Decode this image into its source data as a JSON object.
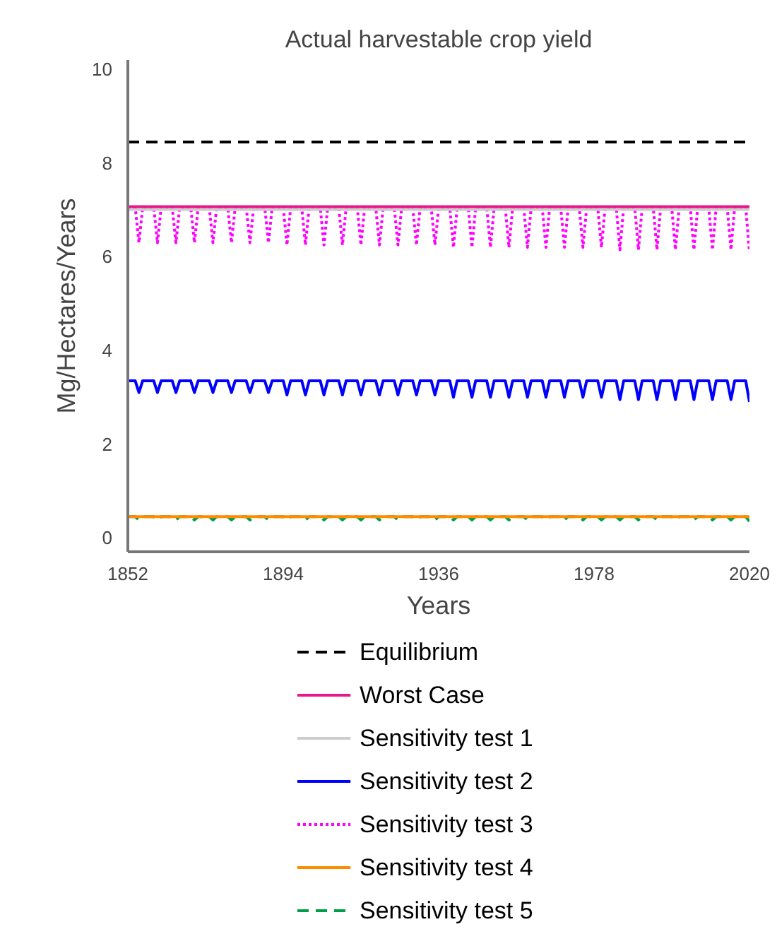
{
  "chart_data": {
    "type": "line",
    "title": "Actual harvestable crop yield",
    "xlabel": "Years",
    "ylabel": "Mg/Hectares/Years",
    "x": [
      1852,
      1854,
      1855,
      1856,
      1859,
      1860,
      1861,
      1864,
      1865,
      1866,
      1869,
      1870,
      1871,
      1874,
      1875,
      1876,
      1879,
      1880,
      1881,
      1884,
      1885,
      1886,
      1889,
      1890,
      1891,
      1894,
      1895,
      1896,
      1899,
      1900,
      1901,
      1904,
      1905,
      1906,
      1909,
      1910,
      1911,
      1914,
      1915,
      1916,
      1919,
      1920,
      1921,
      1924,
      1925,
      1926,
      1929,
      1930,
      1931,
      1934,
      1935,
      1936,
      1939,
      1940,
      1941,
      1944,
      1945,
      1946,
      1949,
      1950,
      1951,
      1954,
      1955,
      1956,
      1959,
      1960,
      1961,
      1964,
      1965,
      1966,
      1969,
      1970,
      1971,
      1974,
      1975,
      1976,
      1979,
      1980,
      1981,
      1984,
      1985,
      1986,
      1989,
      1990,
      1991,
      1994,
      1995,
      1996,
      1999,
      2000,
      2001,
      2004,
      2005,
      2006,
      2009,
      2010,
      2011,
      2014,
      2015,
      2016,
      2019,
      2020
    ],
    "series": [
      {
        "name": "Equilibrium",
        "color": "#000000",
        "line_style": "dashed",
        "values": [
          8.45,
          8.45,
          8.45,
          8.45,
          8.45,
          8.45,
          8.45,
          8.45,
          8.45,
          8.45,
          8.45,
          8.45,
          8.45,
          8.45,
          8.45,
          8.45,
          8.45,
          8.45,
          8.45,
          8.45,
          8.45,
          8.45,
          8.45,
          8.45,
          8.45,
          8.45,
          8.45,
          8.45,
          8.45,
          8.45,
          8.45,
          8.45,
          8.45,
          8.45,
          8.45,
          8.45,
          8.45,
          8.45,
          8.45,
          8.45,
          8.45,
          8.45,
          8.45,
          8.45,
          8.45,
          8.45,
          8.45,
          8.45,
          8.45,
          8.45,
          8.45,
          8.45,
          8.45,
          8.45,
          8.45,
          8.45,
          8.45,
          8.45,
          8.45,
          8.45,
          8.45,
          8.45,
          8.45,
          8.45,
          8.45,
          8.45,
          8.45,
          8.45,
          8.45,
          8.45,
          8.45,
          8.45,
          8.45,
          8.45,
          8.45,
          8.45,
          8.45,
          8.45,
          8.45,
          8.45,
          8.45,
          8.45,
          8.45,
          8.45,
          8.45,
          8.45,
          8.45,
          8.45,
          8.45,
          8.45,
          8.45,
          8.45,
          8.45,
          8.45,
          8.45,
          8.45,
          8.45,
          8.45,
          8.45,
          8.45,
          8.45,
          8.45
        ]
      },
      {
        "name": "Worst Case",
        "color": "#e8178a",
        "values": [
          7.07,
          7.07,
          7.07,
          7.07,
          7.07,
          7.07,
          7.07,
          7.07,
          7.07,
          7.07,
          7.07,
          7.07,
          7.07,
          7.07,
          7.07,
          7.07,
          7.07,
          7.07,
          7.07,
          7.07,
          7.07,
          7.07,
          7.07,
          7.07,
          7.07,
          7.07,
          7.07,
          7.07,
          7.07,
          7.07,
          7.07,
          7.07,
          7.07,
          7.07,
          7.07,
          7.07,
          7.07,
          7.07,
          7.07,
          7.07,
          7.07,
          7.07,
          7.07,
          7.07,
          7.07,
          7.07,
          7.07,
          7.07,
          7.07,
          7.07,
          7.07,
          7.07,
          7.07,
          7.07,
          7.07,
          7.07,
          7.07,
          7.07,
          7.07,
          7.07,
          7.07,
          7.07,
          7.07,
          7.07,
          7.07,
          7.07,
          7.07,
          7.07,
          7.07,
          7.07,
          7.07,
          7.07,
          7.07,
          7.07,
          7.07,
          7.07,
          7.07,
          7.07,
          7.07,
          7.07,
          7.07,
          7.07,
          7.07,
          7.07,
          7.07,
          7.07,
          7.07,
          7.07,
          7.07,
          7.07,
          7.07,
          7.07,
          7.07,
          7.07,
          7.07,
          7.07,
          7.07,
          7.07,
          7.07,
          7.07,
          7.07,
          7.07
        ]
      },
      {
        "name": "Sensitivity test 1",
        "color": "#cccccc",
        "values": [
          7.01,
          7.01,
          7.01,
          7.01,
          7.01,
          7.01,
          7.01,
          7.01,
          7.01,
          7.01,
          7.01,
          7.01,
          7.01,
          7.01,
          7.01,
          7.01,
          7.01,
          7.01,
          7.01,
          7.01,
          7.01,
          7.01,
          7.01,
          7.01,
          7.01,
          7.01,
          7.01,
          7.01,
          7.01,
          7.01,
          7.01,
          7.01,
          7.01,
          7.01,
          7.01,
          7.01,
          7.01,
          7.01,
          7.01,
          7.01,
          7.01,
          7.01,
          7.01,
          7.01,
          7.01,
          7.01,
          7.01,
          7.01,
          7.01,
          7.01,
          7.01,
          7.01,
          7.01,
          7.01,
          7.01,
          7.01,
          7.01,
          7.01,
          7.01,
          7.01,
          7.01,
          7.01,
          7.01,
          7.01,
          7.01,
          7.01,
          7.01,
          7.01,
          7.01,
          7.01,
          7.01,
          7.01,
          7.01,
          7.01,
          7.01,
          7.01,
          7.01,
          7.01,
          7.01,
          7.01,
          7.01,
          7.01,
          7.01,
          7.01,
          7.01,
          7.01,
          7.01,
          7.01,
          7.01,
          7.01,
          7.01,
          7.01,
          7.01,
          7.01,
          7.01,
          7.01,
          7.01,
          7.01,
          7.01,
          7.01,
          7.01,
          7.01
        ]
      },
      {
        "name": "Sensitivity test 2",
        "color": "#0000ff",
        "values": [
          3.35,
          3.35,
          3.1,
          3.35,
          3.35,
          3.1,
          3.35,
          3.35,
          3.1,
          3.35,
          3.35,
          3.1,
          3.35,
          3.35,
          3.1,
          3.35,
          3.35,
          3.1,
          3.35,
          3.35,
          3.1,
          3.35,
          3.35,
          3.1,
          3.35,
          3.35,
          3.05,
          3.35,
          3.35,
          3.05,
          3.35,
          3.35,
          3.05,
          3.35,
          3.35,
          3.05,
          3.35,
          3.35,
          3.05,
          3.35,
          3.35,
          3.05,
          3.35,
          3.35,
          3.05,
          3.35,
          3.35,
          3.05,
          3.35,
          3.35,
          3.05,
          3.35,
          3.35,
          3.0,
          3.35,
          3.35,
          3.0,
          3.35,
          3.35,
          3.0,
          3.35,
          3.35,
          3.0,
          3.35,
          3.35,
          3.0,
          3.35,
          3.35,
          3.0,
          3.35,
          3.35,
          3.0,
          3.35,
          3.35,
          3.0,
          3.35,
          3.35,
          3.0,
          3.35,
          3.35,
          2.95,
          3.35,
          3.35,
          2.95,
          3.35,
          3.35,
          2.95,
          3.35,
          3.35,
          2.95,
          3.35,
          3.35,
          2.95,
          3.35,
          3.35,
          2.95,
          3.35,
          3.35,
          2.95,
          3.35,
          3.35,
          2.9
        ]
      },
      {
        "name": "Sensitivity test 3",
        "color": "#ff00ff",
        "line_style": "dotted",
        "values": [
          7.05,
          7.05,
          6.3,
          7.05,
          7.05,
          6.3,
          7.05,
          7.05,
          6.3,
          7.05,
          7.05,
          6.3,
          7.05,
          7.05,
          6.3,
          7.05,
          7.05,
          6.3,
          7.05,
          7.05,
          6.3,
          7.05,
          7.05,
          6.3,
          7.05,
          7.05,
          6.25,
          7.05,
          7.05,
          6.25,
          7.05,
          7.05,
          6.25,
          7.05,
          7.05,
          6.25,
          7.05,
          7.05,
          6.25,
          7.05,
          7.05,
          6.25,
          7.05,
          7.05,
          6.25,
          7.05,
          7.05,
          6.25,
          7.05,
          7.05,
          6.25,
          7.05,
          7.05,
          6.2,
          7.05,
          7.05,
          6.2,
          7.05,
          7.05,
          6.2,
          7.05,
          7.05,
          6.2,
          7.05,
          7.05,
          6.2,
          7.05,
          7.05,
          6.2,
          7.05,
          7.05,
          6.2,
          7.05,
          7.05,
          6.2,
          7.05,
          7.05,
          6.2,
          7.05,
          7.05,
          6.15,
          7.05,
          7.05,
          6.15,
          7.05,
          7.05,
          6.15,
          7.05,
          7.05,
          6.15,
          7.05,
          7.05,
          6.15,
          7.05,
          7.05,
          6.15,
          7.05,
          7.05,
          6.15,
          7.05,
          7.05,
          6.1
        ]
      },
      {
        "name": "Sensitivity test 4",
        "color": "#ff8c00",
        "values": [
          0.45,
          0.45,
          0.45,
          0.45,
          0.45,
          0.45,
          0.45,
          0.45,
          0.45,
          0.45,
          0.45,
          0.45,
          0.45,
          0.45,
          0.45,
          0.45,
          0.45,
          0.45,
          0.45,
          0.45,
          0.45,
          0.45,
          0.45,
          0.45,
          0.45,
          0.45,
          0.45,
          0.45,
          0.45,
          0.45,
          0.45,
          0.45,
          0.45,
          0.45,
          0.45,
          0.45,
          0.45,
          0.45,
          0.45,
          0.45,
          0.45,
          0.45,
          0.45,
          0.45,
          0.45,
          0.45,
          0.45,
          0.45,
          0.45,
          0.45,
          0.45,
          0.45,
          0.45,
          0.45,
          0.45,
          0.45,
          0.45,
          0.45,
          0.45,
          0.45,
          0.45,
          0.45,
          0.45,
          0.45,
          0.45,
          0.45,
          0.45,
          0.45,
          0.45,
          0.45,
          0.45,
          0.45,
          0.45,
          0.45,
          0.45,
          0.45,
          0.45,
          0.45,
          0.45,
          0.45,
          0.45,
          0.45,
          0.45,
          0.45,
          0.45,
          0.45,
          0.45,
          0.45,
          0.45,
          0.45,
          0.45,
          0.45,
          0.45,
          0.45,
          0.45,
          0.45,
          0.45,
          0.45,
          0.45,
          0.45,
          0.45,
          0.45
        ]
      },
      {
        "name": "Sensitivity test 5",
        "color": "#009e49",
        "line_style": "dashed",
        "values": [
          0.45,
          0.45,
          0.38,
          0.45,
          0.45,
          0.38,
          0.45,
          0.45,
          0.38,
          0.45,
          0.45,
          0.38,
          0.45,
          0.45,
          0.38,
          0.45,
          0.45,
          0.38,
          0.45,
          0.45,
          0.38,
          0.45,
          0.45,
          0.38,
          0.45,
          0.45,
          0.38,
          0.45,
          0.45,
          0.38,
          0.45,
          0.45,
          0.38,
          0.45,
          0.45,
          0.38,
          0.45,
          0.45,
          0.38,
          0.45,
          0.45,
          0.38,
          0.45,
          0.45,
          0.38,
          0.45,
          0.45,
          0.38,
          0.45,
          0.45,
          0.38,
          0.45,
          0.45,
          0.38,
          0.45,
          0.45,
          0.38,
          0.45,
          0.45,
          0.38,
          0.45,
          0.45,
          0.38,
          0.45,
          0.45,
          0.38,
          0.45,
          0.45,
          0.38,
          0.45,
          0.45,
          0.38,
          0.45,
          0.45,
          0.38,
          0.45,
          0.45,
          0.38,
          0.45,
          0.45,
          0.38,
          0.45,
          0.45,
          0.38,
          0.45,
          0.45,
          0.38,
          0.45,
          0.45,
          0.38,
          0.45,
          0.45,
          0.38,
          0.45,
          0.45,
          0.38,
          0.45,
          0.45,
          0.38,
          0.45,
          0.45,
          0.35
        ]
      }
    ],
    "xlim": [
      1852,
      2020
    ],
    "xticks": [
      1852,
      1894,
      1936,
      1978,
      2020
    ],
    "ylim": [
      -0.3,
      10.2
    ],
    "yticks": [
      0,
      2,
      4,
      6,
      8,
      10
    ],
    "grid": false,
    "legend": "bottom"
  }
}
